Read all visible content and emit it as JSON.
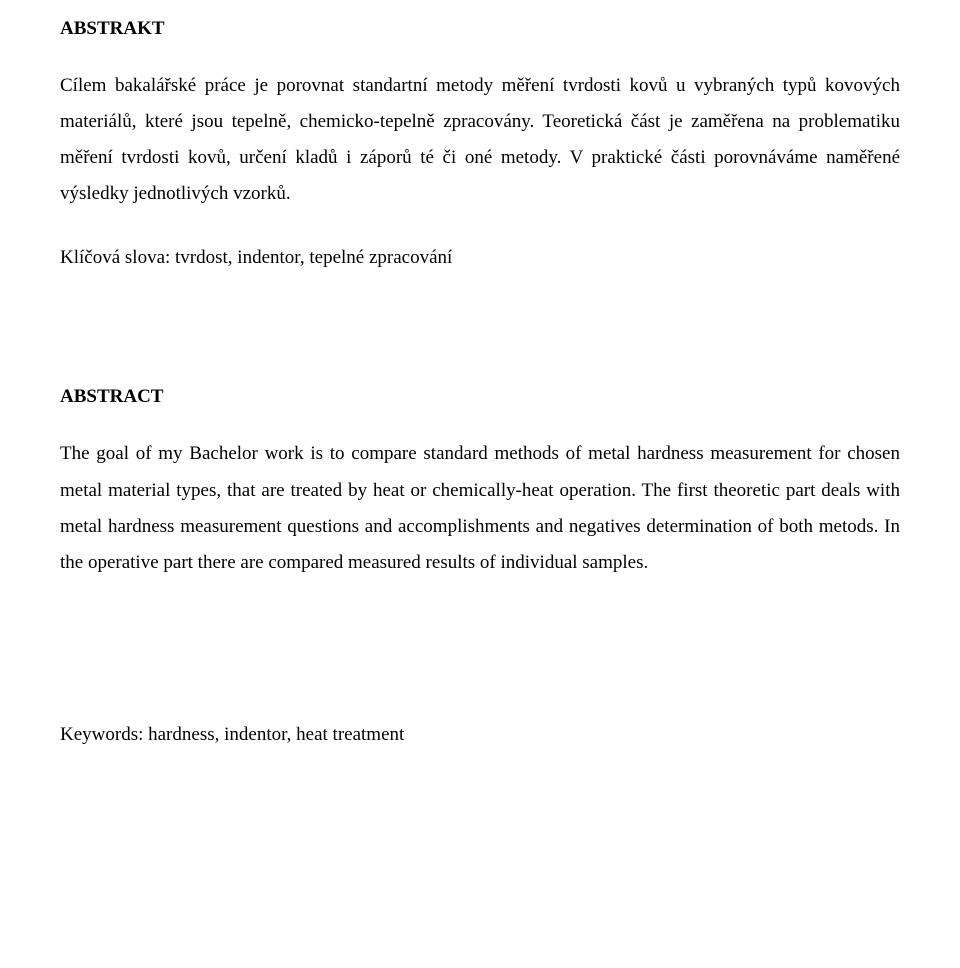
{
  "doc": {
    "background_color": "#ffffff",
    "text_color": "#000000",
    "font_family": "Times New Roman",
    "body_fontsize": 19,
    "heading_fontsize": 19,
    "line_height": 1.9
  },
  "section1": {
    "heading": "ABSTRAKT",
    "paragraph": "Cílem bakalářské práce je porovnat standartní metody měření tvrdosti kovů u vybraných typů kovových materiálů, které jsou tepelně, chemicko-tepelně zpracovány. Teoretická část je zaměřena na problematiku měření tvrdosti kovů, určení kladů i záporů té či oné metody. V praktické části porovnáváme naměřené výsledky jednotlivých vzorků.",
    "keywords": "Klíčová slova: tvrdost, indentor, tepelné zpracování"
  },
  "section2": {
    "heading": "ABSTRACT",
    "paragraph": "The goal of my Bachelor work is to compare standard methods of metal hardness measurement for chosen metal material types, that are treated by heat or chemically-heat operation. The first theoretic part deals with metal hardness measurement questions and accomplishments and negatives determination of both metods. In the operative part there are compared measured results of individual samples.",
    "keywords": "Keywords: hardness, indentor, heat treatment"
  }
}
